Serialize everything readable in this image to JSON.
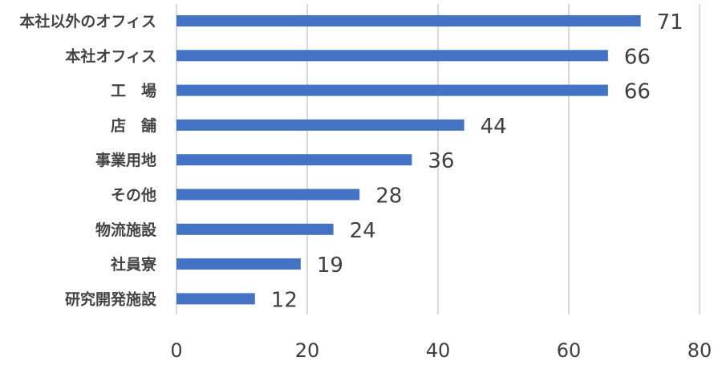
{
  "chart_data": {
    "type": "bar",
    "orientation": "horizontal",
    "categories": [
      "本社以外のオフィス",
      "本社オフィス",
      "工　場",
      "店　舗",
      "事業用地",
      "その他",
      "物流施設",
      "社員寮",
      "研究開発施設"
    ],
    "values": [
      71,
      66,
      66,
      44,
      36,
      28,
      24,
      19,
      12
    ],
    "data_labels": [
      "71",
      "66",
      "66",
      "44",
      "36",
      "28",
      "24",
      "19",
      "12"
    ],
    "xlim": [
      0,
      80
    ],
    "x_ticks": [
      0,
      20,
      40,
      60,
      80
    ],
    "x_tick_labels": [
      "0",
      "20",
      "40",
      "60",
      "80"
    ],
    "grid": true,
    "title": "",
    "xlabel": "",
    "ylabel": "",
    "bar_color": "#4472C4",
    "grid_color": "#D9D9D9"
  }
}
